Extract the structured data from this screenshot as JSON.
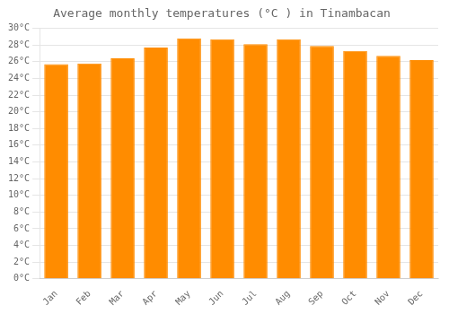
{
  "chart_data": {
    "type": "bar",
    "title": "Average monthly temperatures (°C ) in Tinambacan",
    "categories": [
      "Jan",
      "Feb",
      "Mar",
      "Apr",
      "May",
      "Jun",
      "Jul",
      "Aug",
      "Sep",
      "Oct",
      "Nov",
      "Dec"
    ],
    "values": [
      25.7,
      25.8,
      26.4,
      27.7,
      28.8,
      28.7,
      28.1,
      28.7,
      27.9,
      27.3,
      26.7,
      26.2
    ],
    "color": "#FF8C00",
    "ylim": [
      0,
      30
    ],
    "yticks": [
      {
        "value": 0,
        "label": "0°C"
      },
      {
        "value": 2,
        "label": "2°C"
      },
      {
        "value": 4,
        "label": "4°C"
      },
      {
        "value": 6,
        "label": "6°C"
      },
      {
        "value": 8,
        "label": "8°C"
      },
      {
        "value": 10,
        "label": "10°C"
      },
      {
        "value": 12,
        "label": "12°C"
      },
      {
        "value": 14,
        "label": "14°C"
      },
      {
        "value": 16,
        "label": "16°C"
      },
      {
        "value": 18,
        "label": "18°C"
      },
      {
        "value": 20,
        "label": "20°C"
      },
      {
        "value": 22,
        "label": "22°C"
      },
      {
        "value": 24,
        "label": "24°C"
      },
      {
        "value": 26,
        "label": "26°C"
      },
      {
        "value": 28,
        "label": "28°C"
      },
      {
        "value": 30,
        "label": "30°C"
      }
    ],
    "grid": true
  }
}
